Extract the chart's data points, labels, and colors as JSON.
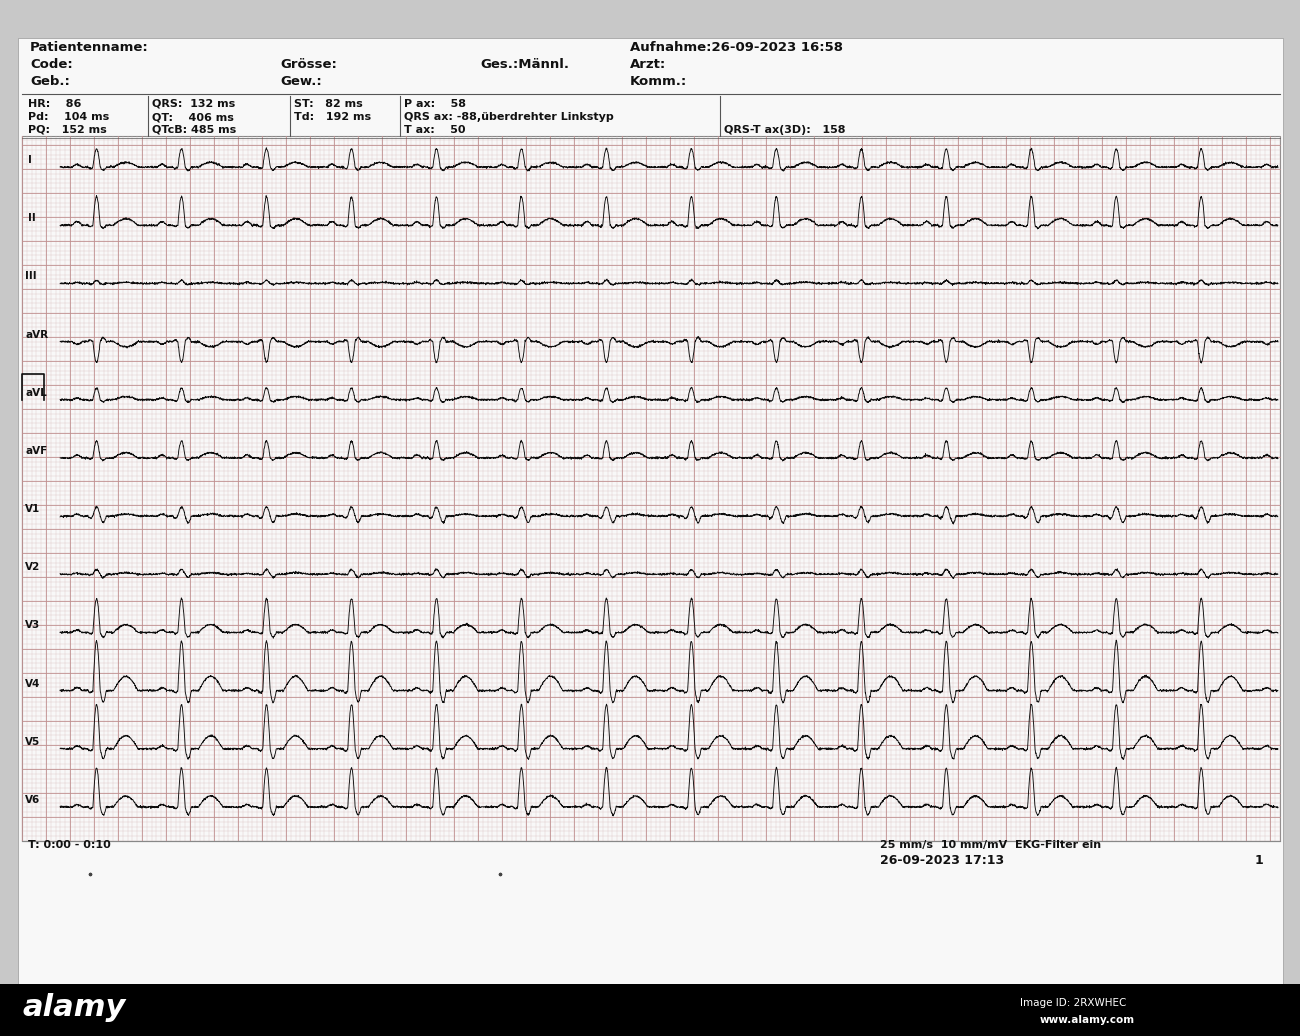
{
  "bg_color": "#d0d0d0",
  "paper_color": "#f0eeee",
  "grid_major_color": "#c8a0a0",
  "grid_minor_color": "#ddc8c8",
  "line_color": "#111111",
  "text_color": "#111111",
  "header": {
    "patientenname": "Patientenname:",
    "code": "Code:",
    "geb": "Geb.:",
    "grosse": "Grösse:",
    "gew": "Gew.:",
    "ges": "Ges.:Männl.",
    "aufnahme": "Aufnahme:26-09-2023 16:58",
    "arzt": "Arzt:",
    "komm": "Komm.:"
  },
  "footer_left": "T: 0:00 - 0:10",
  "footer_right": "25 mm/s  10 mm/mV  EKG-Filter ein",
  "footer_date": "26-09-2023 17:13",
  "footer_page": "1",
  "leads": [
    "I",
    "II",
    "III",
    "aVR",
    "aVL",
    "aVF",
    "V1",
    "V2",
    "V3",
    "V4",
    "V5",
    "V6"
  ],
  "alamy_text": "alamy",
  "image_id": "Image ID: 2RXWHEC",
  "alamy_url": "www.alamy.com",
  "stat_col1": [
    "HR:    86",
    "Pd:    104 ms",
    "PQ:   152 ms"
  ],
  "stat_col2": [
    "QRS:  132 ms",
    "QT:    406 ms",
    "QTcB: 485 ms"
  ],
  "stat_col3": [
    "ST:   82 ms",
    "Td:   192 ms"
  ],
  "stat_col4": [
    "P ax:    58",
    "QRS ax: -88,überdrehter Linkstyp",
    "T ax:    50"
  ],
  "stat_col5": [
    "QRS-T ax(3D):   158"
  ]
}
